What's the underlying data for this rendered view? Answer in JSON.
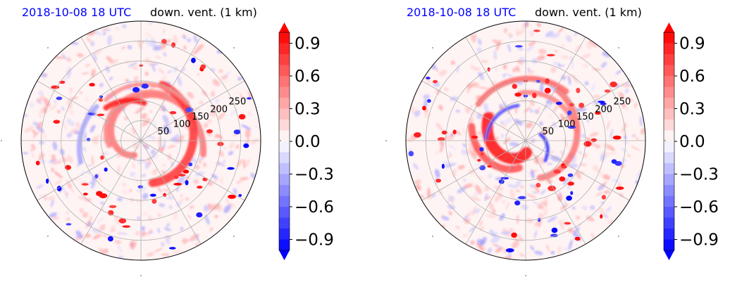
{
  "colors": {
    "title_time": "#0000ff",
    "positive": "#ff0000",
    "negative": "#0000ff",
    "neutral": "#ffffff",
    "grid": "#b0b0b0"
  },
  "panels": [
    {
      "title_time": "2018-10-08 18 UTC",
      "title_field": "down. vent. (1 km)",
      "ring_labels": [
        "50",
        "100",
        "150",
        "200",
        "250"
      ],
      "colorbar_ticks": [
        "0.9",
        "0.6",
        "0.3",
        "0.0",
        "−0.3",
        "−0.6",
        "−0.9"
      ]
    },
    {
      "title_time": "2018-10-08 18 UTC",
      "title_field": "down. vent. (1 km)",
      "ring_labels": [
        "50",
        "100",
        "150",
        "200",
        "250"
      ],
      "colorbar_ticks": [
        "0.9",
        "0.6",
        "0.3",
        "0.0",
        "−0.3",
        "−0.6",
        "−0.9"
      ]
    }
  ],
  "chart_data": [
    {
      "type": "heatmap",
      "projection": "polar",
      "title": "2018-10-08 18 UTC   down. vent. (1 km)",
      "radial_ticks": [
        50,
        100,
        150,
        200,
        250
      ],
      "angular_gridlines": 12,
      "colorbar": {
        "min": -1.0,
        "max": 1.0,
        "ticks": [
          -0.9,
          -0.6,
          -0.3,
          0.0,
          0.3,
          0.6,
          0.9
        ],
        "levels": 21,
        "extend": "both",
        "colormap": "bwr"
      },
      "features": [
        {
          "kind": "spiral-band",
          "sign": "positive",
          "description": "main red arc rising from south-east through east"
        }
      ]
    },
    {
      "type": "heatmap",
      "projection": "polar",
      "title": "2018-10-08 18 UTC   down. vent. (1 km)",
      "radial_ticks": [
        50,
        100,
        150,
        200,
        250
      ],
      "angular_gridlines": 12,
      "colorbar": {
        "min": -1.0,
        "max": 1.0,
        "ticks": [
          -0.9,
          -0.6,
          -0.3,
          0.0,
          0.3,
          0.6,
          0.9
        ],
        "levels": 21,
        "extend": "both",
        "colormap": "bwr"
      },
      "features": [
        {
          "kind": "spiral-band",
          "sign": "positive",
          "description": "strong red band curling south-west of center"
        }
      ]
    }
  ]
}
